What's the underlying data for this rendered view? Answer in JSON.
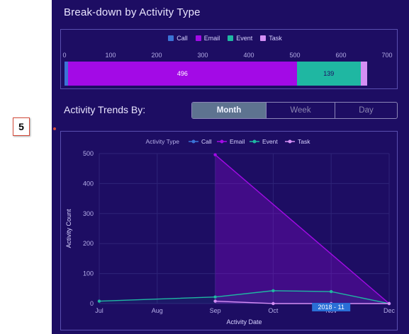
{
  "breakdown": {
    "title": "Break-down by Activity Type",
    "legend": [
      {
        "label": "Call",
        "color": "#3b73d6"
      },
      {
        "label": "Email",
        "color": "#a30ae6"
      },
      {
        "label": "Event",
        "color": "#1fb7a2"
      },
      {
        "label": "Task",
        "color": "#d58ff5"
      }
    ],
    "axis_ticks": [
      "0",
      "100",
      "200",
      "300",
      "400",
      "500",
      "600",
      "700"
    ],
    "axis_max": 700,
    "segments": [
      {
        "type": "Call",
        "value": 8,
        "label": "",
        "color": "#3b73d6",
        "text_color": "#ffffff"
      },
      {
        "type": "Email",
        "value": 496,
        "label": "496",
        "color": "#a30ae6",
        "text_color": "#ffffff"
      },
      {
        "type": "Event",
        "value": 139,
        "label": "139",
        "color": "#1fb7a2",
        "text_color": "#1d0d63"
      },
      {
        "type": "Task",
        "value": 14,
        "label": "",
        "color": "#d58ff5",
        "text_color": "#1d0d63"
      }
    ]
  },
  "trends": {
    "label": "Activity Trends By:",
    "buttons": [
      {
        "label": "Month",
        "active": true
      },
      {
        "label": "Week",
        "active": false
      },
      {
        "label": "Day",
        "active": false
      }
    ]
  },
  "callout": {
    "number": "5"
  },
  "chart_data": {
    "type": "line",
    "legend_title": "Activity Type",
    "x": [
      "Jul",
      "Aug",
      "Sep",
      "Oct",
      "Nov",
      "Dec"
    ],
    "xlabel": "Activity Date",
    "ylabel": "Activity Count",
    "ylim": [
      0,
      500
    ],
    "yticks": [
      "0",
      "100",
      "200",
      "300",
      "400",
      "500"
    ],
    "series": [
      {
        "name": "Call",
        "color": "#3b73d6",
        "points": [
          [
            5,
            0
          ]
        ]
      },
      {
        "name": "Email",
        "color": "#a30ae6",
        "points": [
          [
            2,
            496
          ],
          [
            5,
            0
          ]
        ]
      },
      {
        "name": "Event",
        "color": "#1fb7a2",
        "points": [
          [
            0,
            8
          ],
          [
            2,
            22
          ],
          [
            3,
            43
          ],
          [
            4,
            40
          ],
          [
            5,
            0
          ]
        ]
      },
      {
        "name": "Task",
        "color": "#d58ff5",
        "points": [
          [
            2,
            8
          ],
          [
            3,
            0
          ],
          [
            4,
            0
          ],
          [
            5,
            0
          ]
        ]
      }
    ],
    "tooltip": {
      "label": "2018 - 11",
      "x_index": 4
    }
  }
}
